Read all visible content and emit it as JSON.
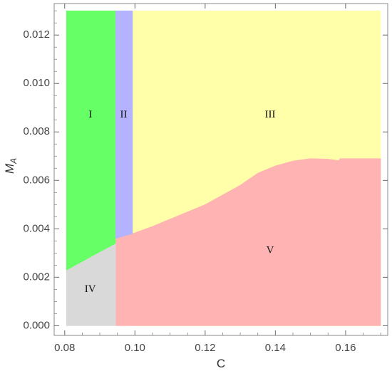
{
  "chart_data": {
    "type": "area",
    "title": "",
    "xlabel": "C",
    "ylabel": "M",
    "ylabel_subscript": "A",
    "xlim": [
      0.077,
      0.172
    ],
    "ylim": [
      -0.0004,
      0.0133
    ],
    "x_ticks": [
      {
        "value": 0.08,
        "label": "0.08"
      },
      {
        "value": 0.1,
        "label": "0.10"
      },
      {
        "value": 0.12,
        "label": "0.12"
      },
      {
        "value": 0.14,
        "label": "0.14"
      },
      {
        "value": 0.16,
        "label": "0.16"
      }
    ],
    "y_ticks": [
      {
        "value": 0.0,
        "label": "0.000"
      },
      {
        "value": 0.002,
        "label": "0.002"
      },
      {
        "value": 0.004,
        "label": "0.004"
      },
      {
        "value": 0.006,
        "label": "0.006"
      },
      {
        "value": 0.008,
        "label": "0.008"
      },
      {
        "value": 0.01,
        "label": "0.010"
      },
      {
        "value": 0.012,
        "label": "0.012"
      }
    ],
    "grid": false,
    "regions": [
      {
        "label": "III",
        "color": "#ffffaa",
        "polygon": [
          [
            0.0993,
            0.013
          ],
          [
            0.17,
            0.013
          ],
          [
            0.17,
            0.0
          ],
          [
            0.0993,
            0.0
          ]
        ],
        "label_at": [
          0.1385,
          0.0087
        ]
      },
      {
        "label": "V",
        "color": "#ffb3b3",
        "polygon": [
          [
            0.0945,
            0.0036
          ],
          [
            0.0993,
            0.0038
          ],
          [
            0.105,
            0.0041
          ],
          [
            0.11,
            0.0044
          ],
          [
            0.115,
            0.0047
          ],
          [
            0.12,
            0.005
          ],
          [
            0.125,
            0.0054
          ],
          [
            0.13,
            0.0058
          ],
          [
            0.135,
            0.0063
          ],
          [
            0.14,
            0.0066
          ],
          [
            0.145,
            0.0068
          ],
          [
            0.15,
            0.0069
          ],
          [
            0.155,
            0.00688
          ],
          [
            0.158,
            0.00682
          ],
          [
            0.1585,
            0.0069
          ],
          [
            0.17,
            0.0069
          ],
          [
            0.17,
            0.0
          ],
          [
            0.0945,
            0.0
          ]
        ],
        "label_at": [
          0.1385,
          0.0031
        ]
      },
      {
        "label": "IV",
        "color": "#d9d9d9",
        "polygon": [
          [
            0.0805,
            0.0023
          ],
          [
            0.0945,
            0.0034
          ],
          [
            0.0945,
            0.0
          ],
          [
            0.0805,
            0.0
          ]
        ],
        "label_at": [
          0.0873,
          0.0015
        ]
      },
      {
        "label": "I",
        "color": "#66ff66",
        "polygon": [
          [
            0.0805,
            0.013
          ],
          [
            0.0945,
            0.013
          ],
          [
            0.0945,
            0.0034
          ],
          [
            0.0805,
            0.0023
          ]
        ],
        "label_at": [
          0.0873,
          0.0087
        ]
      },
      {
        "label": "II",
        "color": "#b3b3ff",
        "polygon": [
          [
            0.0945,
            0.013
          ],
          [
            0.0993,
            0.013
          ],
          [
            0.0993,
            0.0038
          ],
          [
            0.0945,
            0.0036
          ]
        ],
        "label_at": [
          0.0968,
          0.0087
        ]
      }
    ]
  }
}
